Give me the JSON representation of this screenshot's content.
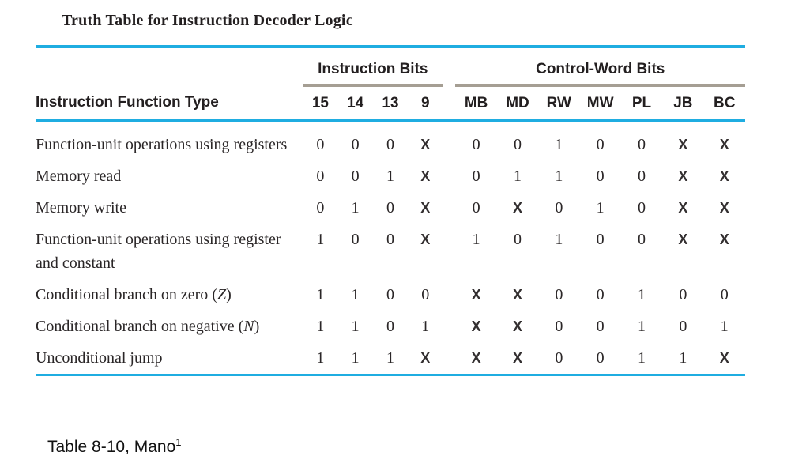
{
  "title": "Truth Table for Instruction Decoder Logic",
  "caption": {
    "text": "Table 8-10, Mano",
    "superscript": "1"
  },
  "colors": {
    "rule_cyan": "#1FADE1",
    "rule_gray": "#A59E93"
  },
  "table": {
    "row_header_label": "Instruction Function Type",
    "groups": [
      {
        "label": "Instruction Bits",
        "columns": [
          "15",
          "14",
          "13",
          "9"
        ]
      },
      {
        "label": "Control-Word Bits",
        "columns": [
          "MB",
          "MD",
          "RW",
          "MW",
          "PL",
          "JB",
          "BC"
        ]
      }
    ],
    "rows": [
      {
        "label_parts": [
          {
            "t": "Function-unit operations using registers"
          }
        ],
        "instruction_bits": [
          "0",
          "0",
          "0",
          "X"
        ],
        "control_word_bits": [
          "0",
          "0",
          "1",
          "0",
          "0",
          "X",
          "X"
        ]
      },
      {
        "label_parts": [
          {
            "t": "Memory read"
          }
        ],
        "instruction_bits": [
          "0",
          "0",
          "1",
          "X"
        ],
        "control_word_bits": [
          "0",
          "1",
          "1",
          "0",
          "0",
          "X",
          "X"
        ]
      },
      {
        "label_parts": [
          {
            "t": "Memory write"
          }
        ],
        "instruction_bits": [
          "0",
          "1",
          "0",
          "X"
        ],
        "control_word_bits": [
          "0",
          "X",
          "0",
          "1",
          "0",
          "X",
          "X"
        ]
      },
      {
        "label_parts": [
          {
            "t": "Function-unit operations using register and constant"
          }
        ],
        "instruction_bits": [
          "1",
          "0",
          "0",
          "X"
        ],
        "control_word_bits": [
          "1",
          "0",
          "1",
          "0",
          "0",
          "X",
          "X"
        ]
      },
      {
        "label_parts": [
          {
            "t": "Conditional branch on zero ("
          },
          {
            "t": "Z",
            "i": true
          },
          {
            "t": ")"
          }
        ],
        "instruction_bits": [
          "1",
          "1",
          "0",
          "0"
        ],
        "control_word_bits": [
          "X",
          "X",
          "0",
          "0",
          "1",
          "0",
          "0"
        ]
      },
      {
        "label_parts": [
          {
            "t": "Conditional branch on negative ("
          },
          {
            "t": "N",
            "i": true
          },
          {
            "t": ")"
          }
        ],
        "instruction_bits": [
          "1",
          "1",
          "0",
          "1"
        ],
        "control_word_bits": [
          "X",
          "X",
          "0",
          "0",
          "1",
          "0",
          "1"
        ]
      },
      {
        "label_parts": [
          {
            "t": "Unconditional jump"
          }
        ],
        "instruction_bits": [
          "1",
          "1",
          "1",
          "X"
        ],
        "control_word_bits": [
          "X",
          "X",
          "0",
          "0",
          "1",
          "1",
          "X"
        ]
      }
    ]
  }
}
